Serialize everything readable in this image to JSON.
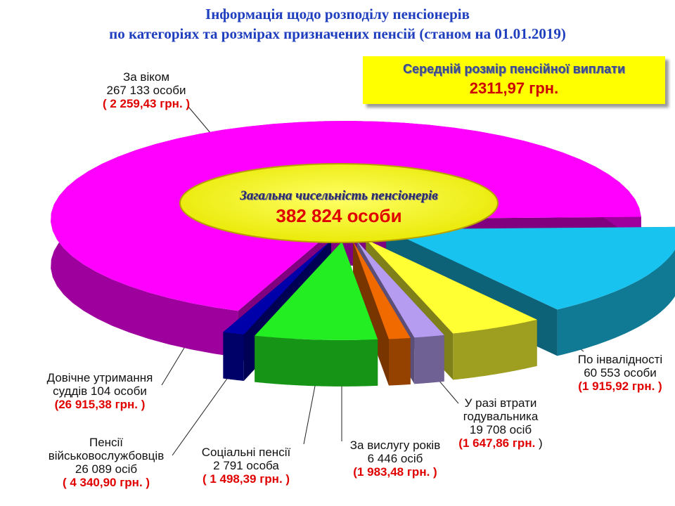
{
  "header": {
    "title_line1": "Інформація щодо розподілу пенсіонерів",
    "title_line2": "по категоріях та розмірах призначених пенсій (станом на 01.01.2019)"
  },
  "average_box": {
    "label": "Середній розмір пенсійної виплати",
    "value": "2311,97 грн."
  },
  "total": {
    "label": "Загальна чисельність пенсіонерів",
    "value": "382 824 особи"
  },
  "chart_data": {
    "type": "pie",
    "title": "Інформація щодо розподілу пенсіонерів по категоріях та розмірах призначених пенсій (станом на 01.01.2019)",
    "series": [
      {
        "name": "За віком",
        "count_text": "267 133 особи",
        "value": 267133,
        "amount": "( 2 259,43 грн. )",
        "color": "#ff00ff"
      },
      {
        "name": "По інвалідності",
        "count_text": "60 553 особи",
        "value": 60553,
        "amount": "(1 915,92 грн. )",
        "color": "#19c3ef"
      },
      {
        "name": "У разі втрати годувальника",
        "count_text": "19 708 осіб",
        "value": 19708,
        "amount": "(1 647,86 грн. )",
        "color": "#ffff33"
      },
      {
        "name": "За вислугу років",
        "count_text": "6 446 осіб",
        "value": 6446,
        "amount": "(1 983,48 грн. )",
        "color": "#b59cf0"
      },
      {
        "name": "Соціальні пенсії",
        "count_text": "2 791 особа",
        "value": 2791,
        "amount": "( 1 498,39 грн. )",
        "color": "#f06a00"
      },
      {
        "name": "Пенсії військовослужбовців",
        "count_text": "26 089 осіб",
        "value": 26089,
        "amount": "( 4 340,90 грн. )",
        "color": "#22ee22"
      },
      {
        "name": "Довічне утримання суддів",
        "count_text": "104 особи",
        "value": 104,
        "amount": "(26 915,38 грн. )",
        "color": "#0000aa"
      }
    ]
  },
  "labels": {
    "age": {
      "line1": "За віком",
      "line2": "267 133 особи",
      "line3": "( 2 259,43 грн. )"
    },
    "disability": {
      "line1": "По інвалідності",
      "line2": "60 553 особи",
      "line3": "(1 915,92 грн. )"
    },
    "survivor": {
      "line1": "У разі втрати",
      "line2": "годувальника",
      "line3": "19 708 осіб",
      "line4_red": "(1 647,86 грн.",
      "line4_tail": " )"
    },
    "service": {
      "line1": "За вислугу років",
      "line2": "6 446 осіб",
      "line3": "(1 983,48 грн. )"
    },
    "social": {
      "line1": "Соціальні пенсії",
      "line2": "2 791 особа",
      "line3": "( 1 498,39 грн. )"
    },
    "military": {
      "line1": "Пенсії",
      "line2": "військовослужбовців",
      "line3": "26 089 осіб",
      "line4": "( 4 340,90 грн. )"
    },
    "judges": {
      "line1": "Довічне утримання",
      "line2": "суддів 104 особи",
      "line3": "(26 915,38 грн. )"
    }
  }
}
